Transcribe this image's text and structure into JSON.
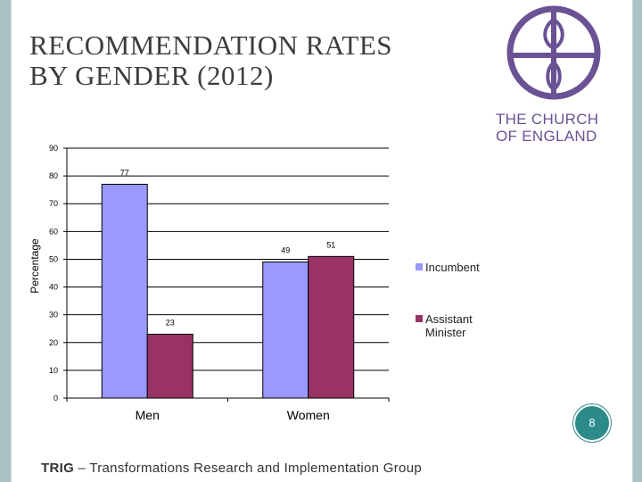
{
  "slide": {
    "title_line1": "RECOMMENDATION RATES",
    "title_line2": "BY GENDER (2012)",
    "logo_line1": "THE CHURCH",
    "logo_line2": "OF ENGLAND",
    "page_number": "8",
    "footer_abbr": "TRIG",
    "footer_rest": " – Transformations Research and Implementation Group"
  },
  "colors": {
    "incumbent": "#9999ff",
    "assistant": "#993366",
    "logo": "#6a5294",
    "frame": "#a9c3c4",
    "badge": "#2d8a8a"
  },
  "chart_data": {
    "type": "bar",
    "title": "",
    "xlabel": "",
    "ylabel": "Percentage",
    "categories": [
      "Men",
      "Women"
    ],
    "series": [
      {
        "name": "Incumbent",
        "values": [
          77,
          49
        ],
        "labels": [
          "77",
          "49"
        ]
      },
      {
        "name": "Assistant Minister",
        "values": [
          23,
          51
        ],
        "labels": [
          "23",
          "51"
        ]
      }
    ],
    "ylim": [
      0,
      90
    ],
    "yticks": [
      "0",
      "10",
      "20",
      "30",
      "40",
      "50",
      "60",
      "70",
      "80",
      "90"
    ],
    "grid": true,
    "legend": "right"
  }
}
